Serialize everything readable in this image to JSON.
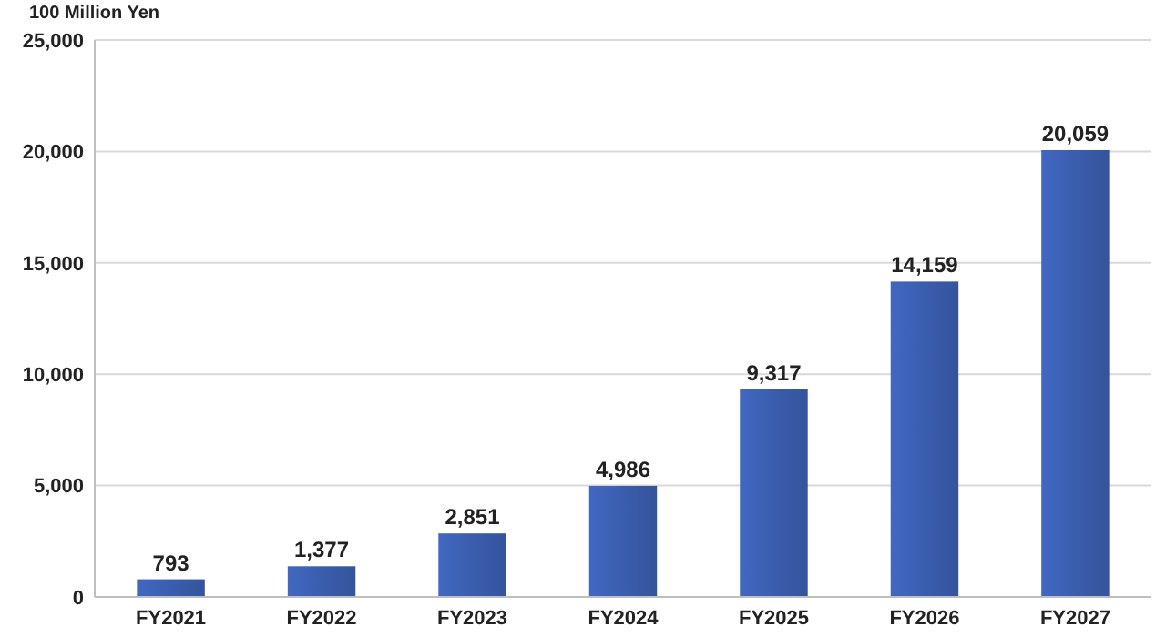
{
  "chart_data": {
    "type": "bar",
    "ylabel": "100 Million Yen",
    "categories": [
      "FY2021",
      "FY2022",
      "FY2023",
      "FY2024",
      "FY2025",
      "FY2026",
      "FY2027"
    ],
    "values": [
      793,
      1377,
      2851,
      4986,
      9317,
      14159,
      20059
    ],
    "value_labels": [
      "793",
      "1,377",
      "2,851",
      "4,986",
      "9,317",
      "14,159",
      "20,059"
    ],
    "color": "#3a5dae",
    "ylim": [
      0,
      25000
    ],
    "yticks": [
      {
        "value": 0,
        "label": "0"
      },
      {
        "value": 5000,
        "label": "5,000"
      },
      {
        "value": 10000,
        "label": "10,000"
      },
      {
        "value": 15000,
        "label": "15,000"
      },
      {
        "value": 20000,
        "label": "20,000"
      },
      {
        "value": 25000,
        "label": "25,000"
      }
    ],
    "grid": "y"
  }
}
